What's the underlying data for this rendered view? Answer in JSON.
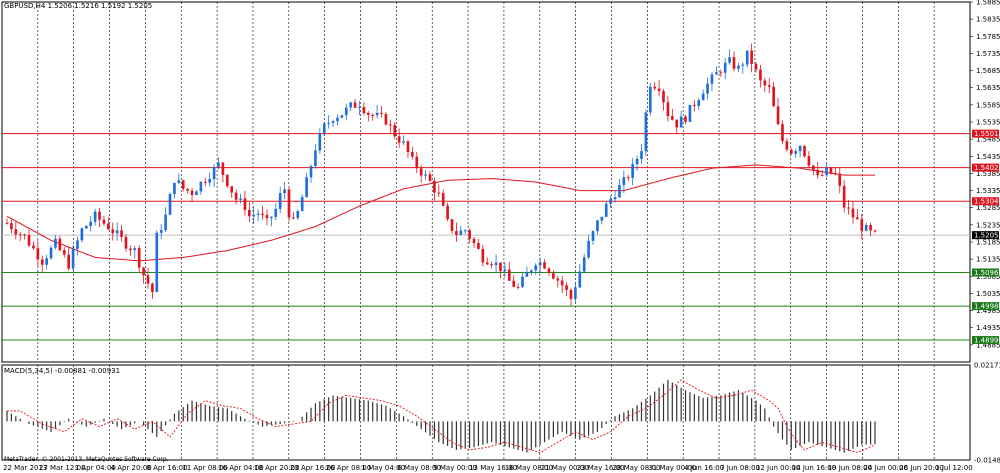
{
  "chart_data": {
    "type": "candlestick",
    "symbol_header": "GBPUSD,H4  1.5206 1.5216 1.5192 1.5205",
    "macd_header": "MACD(5,34,5) -0.00881 -0.00931",
    "copyright": "MetaTrader, © 2001-2013, MetaQuotes Software Corp.",
    "colors": {
      "bull": "#1e6fd9",
      "bear": "#e0141e",
      "ma": "#e0141e",
      "resistance": "#e0141e",
      "support": "#1a8a1a",
      "current": "#c0c0c0",
      "histogram": "#333333",
      "signal": "#e0141e"
    },
    "price_axis": {
      "min": 1.4835,
      "max": 1.5885,
      "ticks": [
        "1.5885",
        "1.5835",
        "1.5785",
        "1.5735",
        "1.5685",
        "1.5635",
        "1.5585",
        "1.5535",
        "1.5485",
        "1.5435",
        "1.5385",
        "1.5335",
        "1.5285",
        "1.5235",
        "1.5185",
        "1.5135",
        "1.5085",
        "1.5035",
        "1.4985",
        "1.4935",
        "1.4885"
      ]
    },
    "macd_axis": {
      "min": -0.01486,
      "max": 0.02171,
      "ticks": [
        "0.02171",
        "-0.01486"
      ]
    },
    "time_labels": [
      "22 Mar 2013",
      "27 Mar 12:00",
      "1 Apr 04:00",
      "4 Apr 20:00",
      "8 Apr 16:00",
      "11 Apr 08:00",
      "16 Apr 04:00",
      "18 Apr 20:00",
      "23 Apr 16:00",
      "26 Apr 08:00",
      "1 May 04:00",
      "6 May 08:00",
      "9 May 00:00",
      "13 May 16:00",
      "16 May 08:00",
      "21 May 00:00",
      "23 May 16:00",
      "28 May 08:00",
      "31 May 00:00",
      "4 Jun 16:00",
      "7 Jun 08:00",
      "12 Jun 00:00",
      "14 Jun 16:00",
      "19 Jun 08:00",
      "24 Jun 00:00",
      "26 Jun 20:00",
      "1 Jul 12:00"
    ],
    "levels": [
      {
        "value": 1.5501,
        "label": "1.5501",
        "kind": "resistance"
      },
      {
        "value": 1.5402,
        "label": "1.5402",
        "kind": "resistance"
      },
      {
        "value": 1.5304,
        "label": "1.5304",
        "kind": "resistance"
      },
      {
        "value": 1.5205,
        "label": "1.5205",
        "kind": "current"
      },
      {
        "value": 1.5096,
        "label": "1.5096",
        "kind": "support"
      },
      {
        "value": 1.4998,
        "label": "1.4998",
        "kind": "support"
      },
      {
        "value": 1.4899,
        "label": "1.4899",
        "kind": "support"
      }
    ],
    "close_path": [
      [
        0,
        1.524
      ],
      [
        4,
        1.52
      ],
      [
        8,
        1.513
      ],
      [
        11,
        1.518
      ],
      [
        14,
        1.512
      ],
      [
        17,
        1.522
      ],
      [
        20,
        1.526
      ],
      [
        23,
        1.523
      ],
      [
        27,
        1.518
      ],
      [
        29,
        1.516
      ],
      [
        31,
        1.509
      ],
      [
        33,
        1.504
      ],
      [
        34,
        1.52
      ],
      [
        36,
        1.526
      ],
      [
        38,
        1.537
      ],
      [
        40,
        1.534
      ],
      [
        42,
        1.533
      ],
      [
        45,
        1.537
      ],
      [
        48,
        1.541
      ],
      [
        50,
        1.536
      ],
      [
        52,
        1.531
      ],
      [
        54,
        1.529
      ],
      [
        55,
        1.526
      ],
      [
        57,
        1.527
      ],
      [
        59,
        1.524
      ],
      [
        61,
        1.528
      ],
      [
        62,
        1.532
      ],
      [
        63,
        1.534
      ],
      [
        64,
        1.527
      ],
      [
        65,
        1.524
      ],
      [
        66,
        1.527
      ],
      [
        68,
        1.536
      ],
      [
        70,
        1.546
      ],
      [
        72,
        1.552
      ],
      [
        74,
        1.555
      ],
      [
        76,
        1.556
      ],
      [
        78,
        1.558
      ],
      [
        80,
        1.559
      ],
      [
        82,
        1.556
      ],
      [
        84,
        1.555
      ],
      [
        86,
        1.554
      ],
      [
        88,
        1.55
      ],
      [
        90,
        1.547
      ],
      [
        92,
        1.542
      ],
      [
        94,
        1.539
      ],
      [
        96,
        1.536
      ],
      [
        98,
        1.532
      ],
      [
        100,
        1.524
      ],
      [
        102,
        1.521
      ],
      [
        104,
        1.522
      ],
      [
        106,
        1.518
      ],
      [
        108,
        1.514
      ],
      [
        110,
        1.513
      ],
      [
        112,
        1.511
      ],
      [
        114,
        1.507
      ],
      [
        116,
        1.505
      ],
      [
        118,
        1.509
      ],
      [
        120,
        1.513
      ],
      [
        122,
        1.512
      ],
      [
        124,
        1.509
      ],
      [
        126,
        1.506
      ],
      [
        128,
        1.502
      ],
      [
        130,
        1.51
      ],
      [
        132,
        1.518
      ],
      [
        134,
        1.524
      ],
      [
        136,
        1.529
      ],
      [
        138,
        1.533
      ],
      [
        140,
        1.536
      ],
      [
        142,
        1.54
      ],
      [
        144,
        1.546
      ],
      [
        145,
        1.556
      ],
      [
        146,
        1.565
      ],
      [
        148,
        1.564
      ],
      [
        150,
        1.556
      ],
      [
        152,
        1.553
      ],
      [
        154,
        1.555
      ],
      [
        156,
        1.559
      ],
      [
        158,
        1.563
      ],
      [
        160,
        1.566
      ],
      [
        162,
        1.569
      ],
      [
        164,
        1.571
      ],
      [
        166,
        1.569
      ],
      [
        168,
        1.573
      ],
      [
        169,
        1.571
      ],
      [
        171,
        1.565
      ],
      [
        173,
        1.563
      ],
      [
        175,
        1.552
      ],
      [
        176,
        1.548
      ],
      [
        178,
        1.545
      ],
      [
        180,
        1.547
      ],
      [
        182,
        1.542
      ],
      [
        184,
        1.537
      ],
      [
        186,
        1.539
      ],
      [
        188,
        1.538
      ],
      [
        189,
        1.534
      ],
      [
        190,
        1.529
      ],
      [
        192,
        1.526
      ],
      [
        194,
        1.523
      ],
      [
        196,
        1.521
      ],
      [
        197,
        1.5205
      ]
    ],
    "ma_path": [
      [
        0,
        1.526
      ],
      [
        10,
        1.519
      ],
      [
        20,
        1.514
      ],
      [
        30,
        1.513
      ],
      [
        40,
        1.514
      ],
      [
        50,
        1.516
      ],
      [
        60,
        1.519
      ],
      [
        70,
        1.523
      ],
      [
        80,
        1.529
      ],
      [
        90,
        1.534
      ],
      [
        100,
        1.5365
      ],
      [
        110,
        1.537
      ],
      [
        120,
        1.536
      ],
      [
        130,
        1.5335
      ],
      [
        140,
        1.5335
      ],
      [
        150,
        1.537
      ],
      [
        160,
        1.54
      ],
      [
        170,
        1.541
      ],
      [
        180,
        1.54
      ],
      [
        190,
        1.538
      ],
      [
        197,
        1.538
      ]
    ],
    "macd_path": [
      [
        0,
        0.004
      ],
      [
        5,
        -0.001
      ],
      [
        10,
        -0.004
      ],
      [
        14,
        0.001
      ],
      [
        18,
        -0.002
      ],
      [
        22,
        0.001
      ],
      [
        26,
        -0.003
      ],
      [
        30,
        0.0
      ],
      [
        34,
        -0.006
      ],
      [
        38,
        0.003
      ],
      [
        42,
        0.008
      ],
      [
        46,
        0.006
      ],
      [
        50,
        0.005
      ],
      [
        54,
        0.001
      ],
      [
        58,
        -0.002
      ],
      [
        62,
        -0.001
      ],
      [
        66,
        0.0
      ],
      [
        70,
        0.007
      ],
      [
        74,
        0.01
      ],
      [
        78,
        0.009
      ],
      [
        82,
        0.008
      ],
      [
        86,
        0.006
      ],
      [
        90,
        0.002
      ],
      [
        94,
        -0.003
      ],
      [
        98,
        -0.008
      ],
      [
        102,
        -0.011
      ],
      [
        106,
        -0.01
      ],
      [
        110,
        -0.008
      ],
      [
        114,
        -0.01
      ],
      [
        118,
        -0.012
      ],
      [
        122,
        -0.008
      ],
      [
        126,
        -0.004
      ],
      [
        130,
        -0.007
      ],
      [
        134,
        -0.004
      ],
      [
        138,
        0.002
      ],
      [
        142,
        0.005
      ],
      [
        146,
        0.01
      ],
      [
        150,
        0.016
      ],
      [
        154,
        0.012
      ],
      [
        158,
        0.009
      ],
      [
        162,
        0.01
      ],
      [
        166,
        0.012
      ],
      [
        170,
        0.008
      ],
      [
        172,
        0.005
      ],
      [
        174,
        -0.002
      ],
      [
        176,
        -0.007
      ],
      [
        178,
        -0.011
      ],
      [
        182,
        -0.008
      ],
      [
        186,
        -0.01
      ],
      [
        190,
        -0.012
      ],
      [
        194,
        -0.009
      ],
      [
        197,
        -0.00881
      ]
    ]
  }
}
